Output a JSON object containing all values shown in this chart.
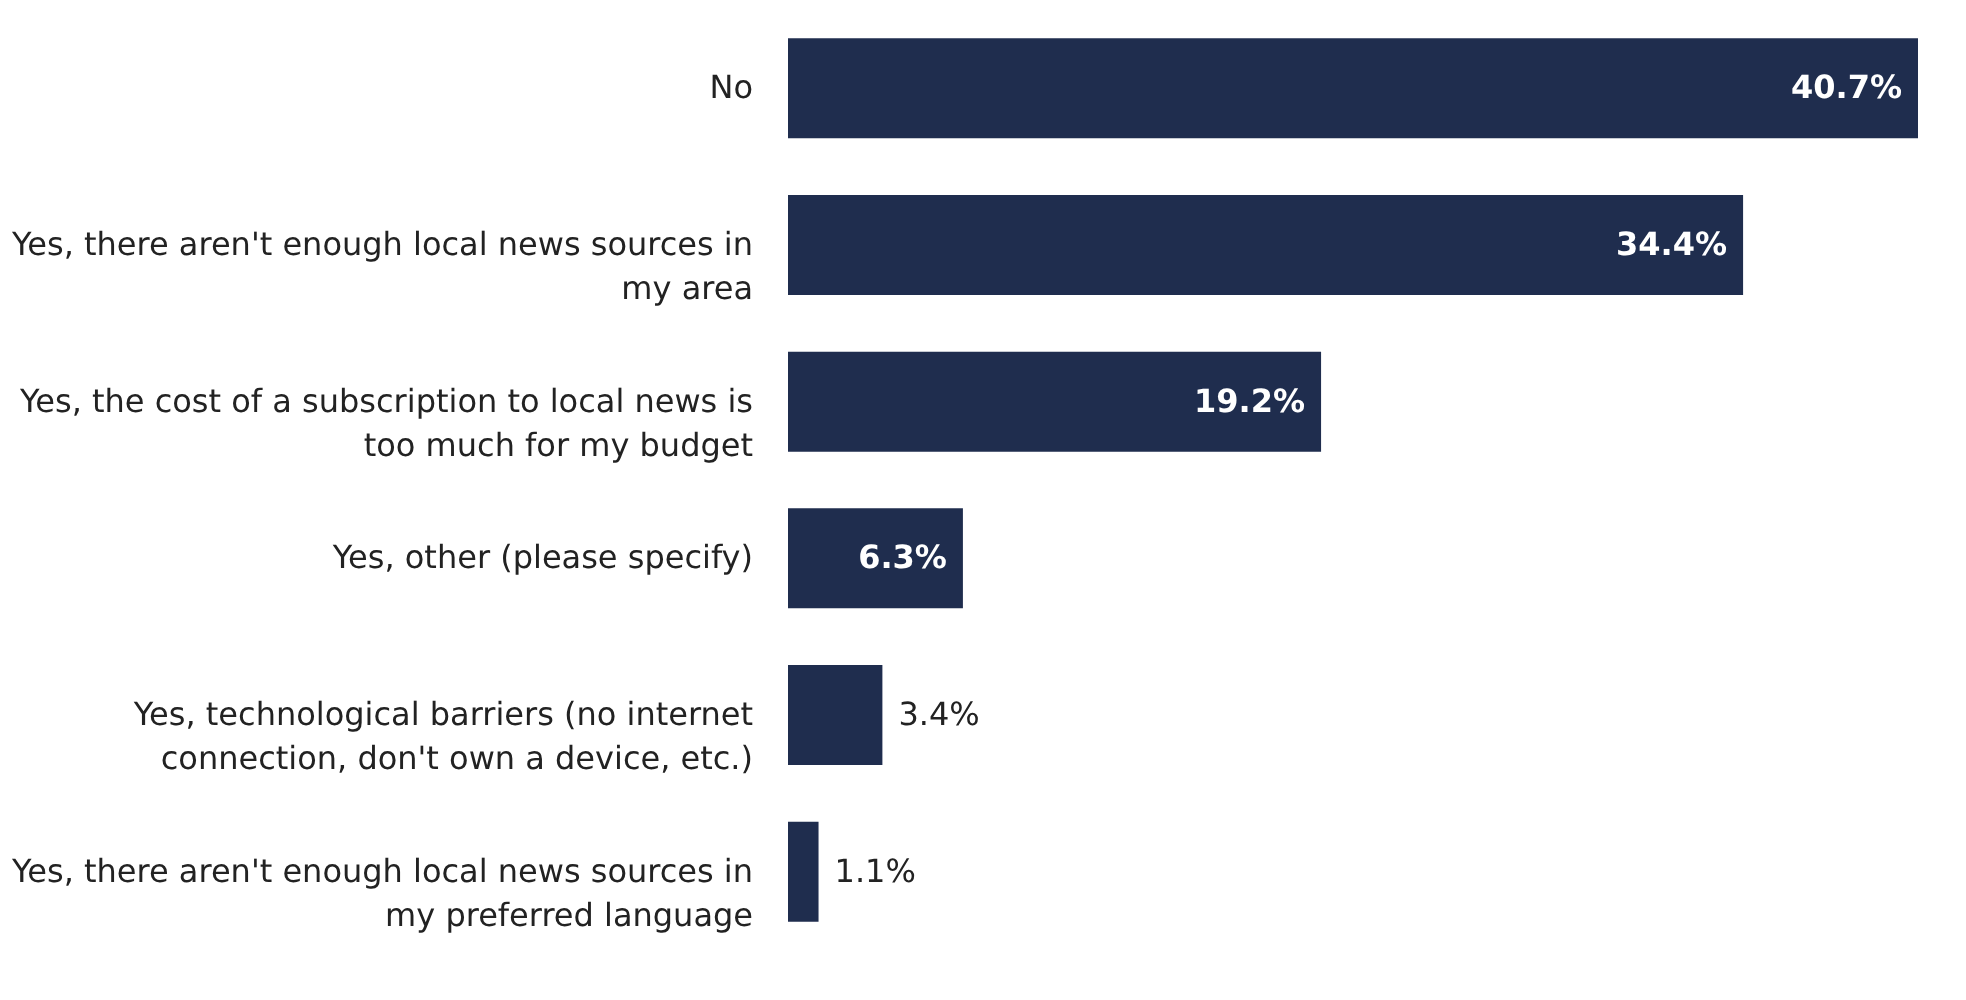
{
  "chart_data": {
    "type": "bar",
    "orientation": "horizontal",
    "categories": [
      "No",
      "Yes, there aren't enough local news sources in my area",
      "Yes, the cost of a subscription to local news is too much for my budget",
      "Yes, other (please specify)",
      "Yes, technological barriers (no internet connection, don't own a device, etc.)",
      "Yes, there aren't enough local news sources in my preferred language"
    ],
    "values": [
      40.7,
      34.4,
      19.2,
      6.3,
      3.4,
      1.1
    ],
    "value_labels": [
      "40.7%",
      "34.4%",
      "19.2%",
      "6.3%",
      "3.4%",
      "1.1%"
    ],
    "color": "#1f2d4e",
    "grid": false
  }
}
